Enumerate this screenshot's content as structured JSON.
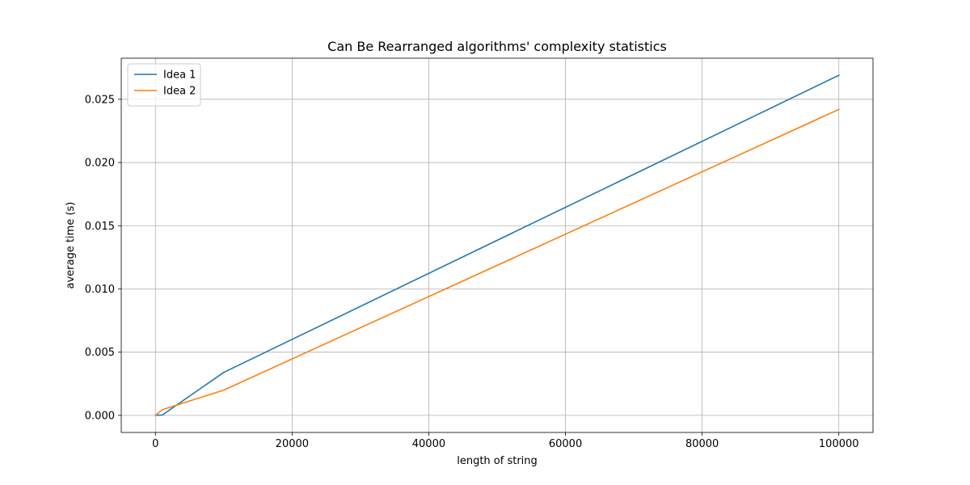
{
  "chart_data": {
    "type": "line",
    "title": "Can Be Rearranged algorithms' complexity statistics",
    "xlabel": "length of string",
    "ylabel": "average time (s)",
    "xlim": [
      -5000,
      105000
    ],
    "ylim": [
      -0.00135,
      0.02825
    ],
    "xticks": [
      0,
      20000,
      40000,
      60000,
      80000,
      100000
    ],
    "xtick_labels": [
      "0",
      "20000",
      "40000",
      "60000",
      "80000",
      "100000"
    ],
    "yticks": [
      0.0,
      0.005,
      0.01,
      0.015,
      0.02,
      0.025
    ],
    "ytick_labels": [
      "0.000",
      "0.005",
      "0.010",
      "0.015",
      "0.020",
      "0.025"
    ],
    "grid": true,
    "legend_position": "upper-left",
    "series": [
      {
        "name": "Idea 1",
        "color": "#1f77b4",
        "x": [
          10,
          100,
          1000,
          10000,
          100000
        ],
        "y": [
          0.0,
          1e-05,
          3e-05,
          0.0034,
          0.0269
        ]
      },
      {
        "name": "Idea 2",
        "color": "#ff7f0e",
        "x": [
          10,
          100,
          1000,
          10000,
          100000
        ],
        "y": [
          0.0,
          4e-05,
          0.00045,
          0.002,
          0.0242
        ]
      }
    ]
  }
}
